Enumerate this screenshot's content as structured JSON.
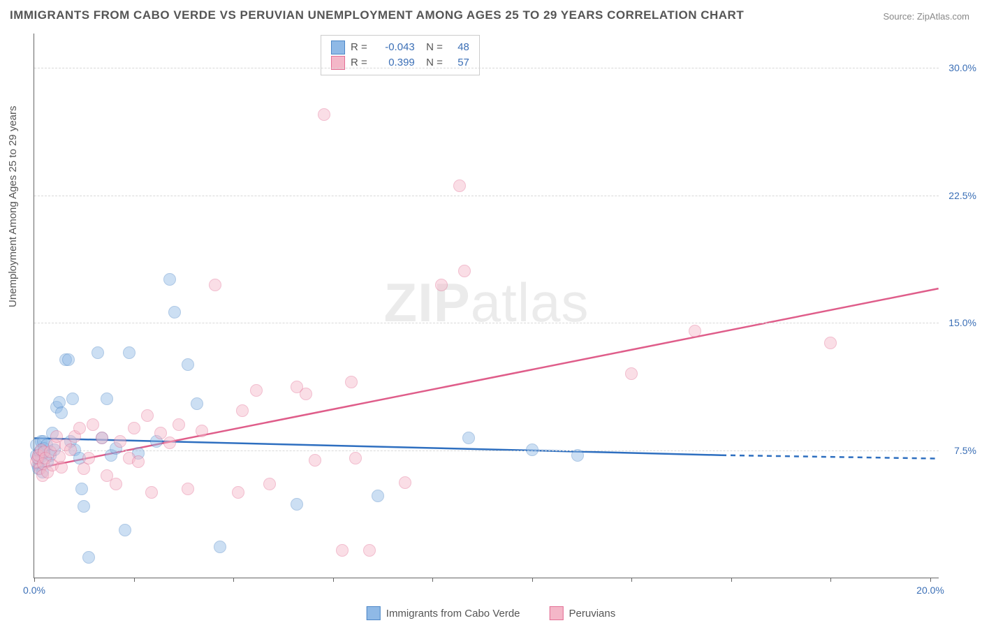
{
  "title": "IMMIGRANTS FROM CABO VERDE VS PERUVIAN UNEMPLOYMENT AMONG AGES 25 TO 29 YEARS CORRELATION CHART",
  "source": "Source: ZipAtlas.com",
  "watermark_a": "ZIP",
  "watermark_b": "atlas",
  "ylabel": "Unemployment Among Ages 25 to 29 years",
  "chart": {
    "type": "scatter",
    "xlim": [
      0,
      20
    ],
    "ylim": [
      0,
      32
    ],
    "xtick_positions": [
      0,
      2.2,
      4.4,
      6.6,
      8.8,
      11.0,
      13.2,
      15.4,
      17.6,
      19.8
    ],
    "xtick_labels_shown": {
      "0": "0.0%",
      "19.8": "20.0%"
    },
    "yticks": [
      7.5,
      15.0,
      22.5,
      30.0
    ],
    "ytick_labels": [
      "7.5%",
      "15.0%",
      "22.5%",
      "30.0%"
    ],
    "grid_color": "#d8d8d8",
    "axis_color": "#666666",
    "label_color": "#555555",
    "tick_value_color": "#3b6fb6",
    "background": "#ffffff",
    "marker_radius": 9,
    "marker_opacity": 0.45
  },
  "series": [
    {
      "name": "Immigrants from Cabo Verde",
      "color_fill": "#8fb9e6",
      "color_stroke": "#4d87c7",
      "line_color": "#2e6fc0",
      "R": "-0.043",
      "N": "48",
      "reg_line": {
        "x1": 0,
        "y1": 8.2,
        "x2": 15.2,
        "y2": 7.2,
        "dash_from_x": 15.2,
        "dash_to_x": 20,
        "dash_y": 7.0
      },
      "points": [
        [
          0.05,
          7.2
        ],
        [
          0.05,
          7.8
        ],
        [
          0.07,
          6.6
        ],
        [
          0.1,
          7.0
        ],
        [
          0.1,
          6.4
        ],
        [
          0.12,
          7.4
        ],
        [
          0.15,
          8.0
        ],
        [
          0.15,
          7.1
        ],
        [
          0.18,
          6.2
        ],
        [
          0.2,
          8.0
        ],
        [
          0.2,
          7.3
        ],
        [
          0.22,
          7.6
        ],
        [
          0.28,
          7.8
        ],
        [
          0.3,
          6.8
        ],
        [
          0.35,
          7.2
        ],
        [
          0.4,
          8.5
        ],
        [
          0.45,
          7.5
        ],
        [
          0.5,
          10.0
        ],
        [
          0.55,
          10.3
        ],
        [
          0.6,
          9.7
        ],
        [
          0.7,
          12.8
        ],
        [
          0.75,
          12.8
        ],
        [
          0.8,
          8.0
        ],
        [
          0.85,
          10.5
        ],
        [
          0.9,
          7.5
        ],
        [
          1.0,
          7.0
        ],
        [
          1.05,
          5.2
        ],
        [
          1.1,
          4.2
        ],
        [
          1.2,
          1.2
        ],
        [
          1.4,
          13.2
        ],
        [
          1.5,
          8.2
        ],
        [
          1.6,
          10.5
        ],
        [
          1.7,
          7.2
        ],
        [
          1.8,
          7.6
        ],
        [
          2.0,
          2.8
        ],
        [
          2.1,
          13.2
        ],
        [
          2.3,
          7.3
        ],
        [
          2.7,
          8.0
        ],
        [
          3.0,
          17.5
        ],
        [
          3.1,
          15.6
        ],
        [
          3.4,
          12.5
        ],
        [
          3.6,
          10.2
        ],
        [
          4.1,
          1.8
        ],
        [
          5.8,
          4.3
        ],
        [
          7.6,
          4.8
        ],
        [
          9.6,
          8.2
        ],
        [
          11.0,
          7.5
        ],
        [
          12.0,
          7.2
        ]
      ]
    },
    {
      "name": "Peruvians",
      "color_fill": "#f4b7c8",
      "color_stroke": "#e36f95",
      "line_color": "#df5d8a",
      "R": "0.399",
      "N": "57",
      "reg_line": {
        "x1": 0,
        "y1": 6.4,
        "x2": 20,
        "y2": 17.0
      },
      "points": [
        [
          0.05,
          6.8
        ],
        [
          0.07,
          7.0
        ],
        [
          0.1,
          7.2
        ],
        [
          0.12,
          6.4
        ],
        [
          0.15,
          7.5
        ],
        [
          0.18,
          6.0
        ],
        [
          0.2,
          6.7
        ],
        [
          0.22,
          7.4
        ],
        [
          0.25,
          7.0
        ],
        [
          0.3,
          6.2
        ],
        [
          0.35,
          7.4
        ],
        [
          0.4,
          6.6
        ],
        [
          0.45,
          7.8
        ],
        [
          0.5,
          8.3
        ],
        [
          0.55,
          7.1
        ],
        [
          0.6,
          6.5
        ],
        [
          0.7,
          7.8
        ],
        [
          0.8,
          7.5
        ],
        [
          0.9,
          8.3
        ],
        [
          1.0,
          8.8
        ],
        [
          1.1,
          6.4
        ],
        [
          1.2,
          7.0
        ],
        [
          1.3,
          9.0
        ],
        [
          1.5,
          8.2
        ],
        [
          1.6,
          6.0
        ],
        [
          1.8,
          5.5
        ],
        [
          1.9,
          8.0
        ],
        [
          2.1,
          7.0
        ],
        [
          2.2,
          8.8
        ],
        [
          2.3,
          6.8
        ],
        [
          2.5,
          9.5
        ],
        [
          2.6,
          5.0
        ],
        [
          2.8,
          8.5
        ],
        [
          3.0,
          7.9
        ],
        [
          3.2,
          9.0
        ],
        [
          3.4,
          5.2
        ],
        [
          3.7,
          8.6
        ],
        [
          4.0,
          17.2
        ],
        [
          4.5,
          5.0
        ],
        [
          4.6,
          9.8
        ],
        [
          4.9,
          11.0
        ],
        [
          5.2,
          5.5
        ],
        [
          5.8,
          11.2
        ],
        [
          6.0,
          10.8
        ],
        [
          6.2,
          6.9
        ],
        [
          6.4,
          27.2
        ],
        [
          6.8,
          1.6
        ],
        [
          7.0,
          11.5
        ],
        [
          7.1,
          7.0
        ],
        [
          7.4,
          1.6
        ],
        [
          8.2,
          5.6
        ],
        [
          9.0,
          17.2
        ],
        [
          9.4,
          23.0
        ],
        [
          9.5,
          18.0
        ],
        [
          13.2,
          12.0
        ],
        [
          14.6,
          14.5
        ],
        [
          17.6,
          13.8
        ]
      ]
    }
  ]
}
